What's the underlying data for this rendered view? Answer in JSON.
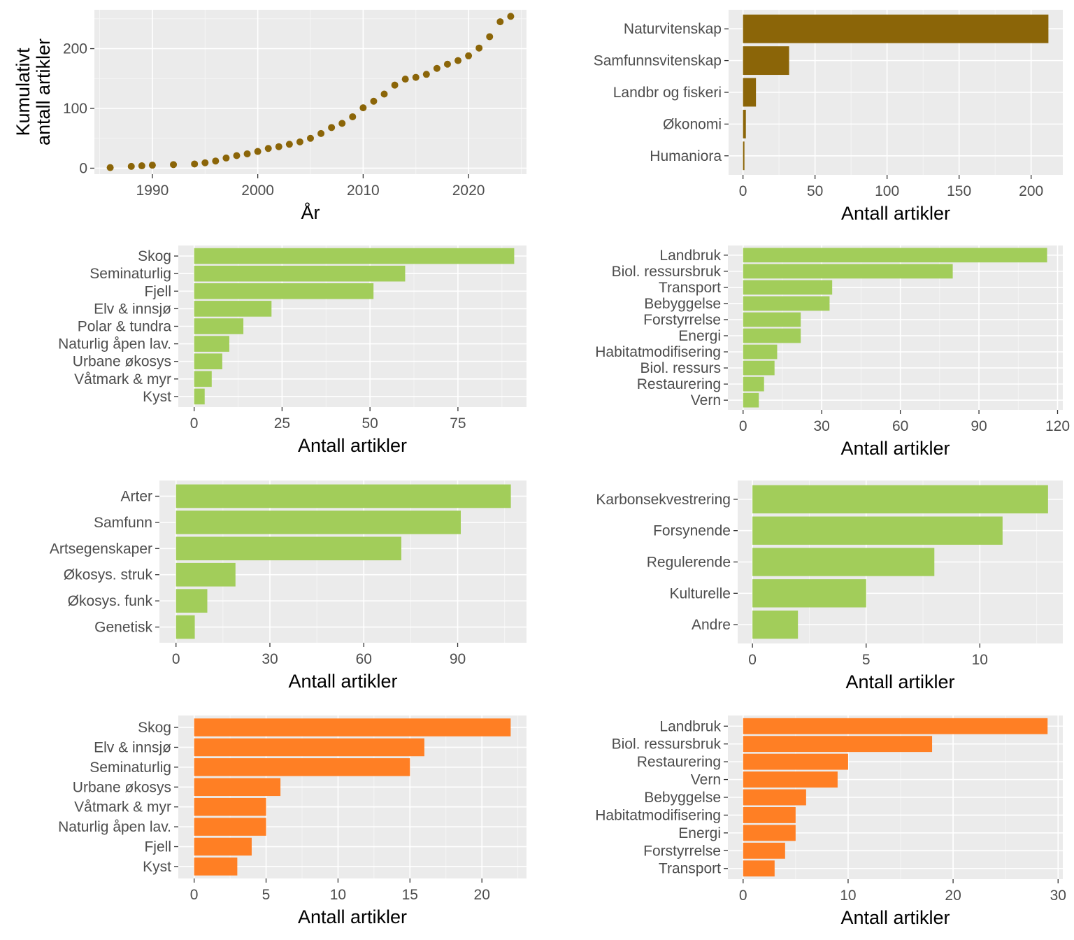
{
  "chart_data": [
    {
      "id": "cumulative",
      "type": "scatter",
      "color": "#8B6508",
      "xlabel": "År",
      "ylabel_lines": [
        "Kumulativt",
        "antall artikler"
      ],
      "xlim": [
        1984.5,
        2025.5
      ],
      "ylim": [
        -10,
        265
      ],
      "xticks": [
        1990,
        2000,
        2010,
        2020
      ],
      "yticks": [
        0,
        100,
        200
      ],
      "points": [
        {
          "x": 1986,
          "y": 1
        },
        {
          "x": 1988,
          "y": 3
        },
        {
          "x": 1989,
          "y": 4
        },
        {
          "x": 1990,
          "y": 5
        },
        {
          "x": 1992,
          "y": 6
        },
        {
          "x": 1994,
          "y": 7
        },
        {
          "x": 1995,
          "y": 9
        },
        {
          "x": 1996,
          "y": 12
        },
        {
          "x": 1997,
          "y": 17
        },
        {
          "x": 1998,
          "y": 21
        },
        {
          "x": 1999,
          "y": 24
        },
        {
          "x": 2000,
          "y": 28
        },
        {
          "x": 2001,
          "y": 33
        },
        {
          "x": 2002,
          "y": 36
        },
        {
          "x": 2003,
          "y": 40
        },
        {
          "x": 2004,
          "y": 44
        },
        {
          "x": 2005,
          "y": 50
        },
        {
          "x": 2006,
          "y": 58
        },
        {
          "x": 2007,
          "y": 68
        },
        {
          "x": 2008,
          "y": 75
        },
        {
          "x": 2009,
          "y": 86
        },
        {
          "x": 2010,
          "y": 101
        },
        {
          "x": 2011,
          "y": 112
        },
        {
          "x": 2012,
          "y": 124
        },
        {
          "x": 2013,
          "y": 139
        },
        {
          "x": 2014,
          "y": 149
        },
        {
          "x": 2015,
          "y": 152
        },
        {
          "x": 2016,
          "y": 157
        },
        {
          "x": 2017,
          "y": 167
        },
        {
          "x": 2018,
          "y": 174
        },
        {
          "x": 2019,
          "y": 180
        },
        {
          "x": 2020,
          "y": 188
        },
        {
          "x": 2021,
          "y": 201
        },
        {
          "x": 2022,
          "y": 220
        },
        {
          "x": 2023,
          "y": 245
        },
        {
          "x": 2024,
          "y": 254
        }
      ]
    },
    {
      "id": "fields",
      "type": "bar",
      "orientation": "horizontal",
      "color": "#8B6508",
      "xlabel": "Antall artikler",
      "xlim": [
        -10,
        222
      ],
      "xticks": [
        0,
        50,
        100,
        150,
        200
      ],
      "categories": [
        "Naturvitenskap",
        "Samfunnsvitenskap",
        "Landbr og fiskeri",
        "Økonomi",
        "Humaniora"
      ],
      "values": [
        212,
        32,
        9,
        2,
        1
      ]
    },
    {
      "id": "ecosystems_green",
      "type": "bar",
      "orientation": "horizontal",
      "color": "#A2CD5A",
      "xlabel": "Antall artikler",
      "xlim": [
        -4.5,
        94.5
      ],
      "xticks": [
        0,
        25,
        50,
        75
      ],
      "categories": [
        "Skog",
        "Seminaturlig",
        "Fjell",
        "Elv & innsjø",
        "Polar & tundra",
        "Naturlig åpen lav.",
        "Urbane økosys",
        "Våtmark & myr",
        "Kyst"
      ],
      "values": [
        91,
        60,
        51,
        22,
        14,
        10,
        8,
        5,
        3
      ]
    },
    {
      "id": "drivers_green",
      "type": "bar",
      "orientation": "horizontal",
      "color": "#A2CD5A",
      "xlabel": "Antall artikler",
      "xlim": [
        -5.8,
        122
      ],
      "xticks": [
        0,
        30,
        60,
        90,
        120
      ],
      "categories": [
        "Landbruk",
        "Biol. ressursbruk",
        "Transport",
        "Bebyggelse",
        "Forstyrrelse",
        "Energi",
        "Habitatmodifisering",
        "Biol. ressurs",
        "Restaurering",
        "Vern"
      ],
      "values": [
        116,
        80,
        34,
        33,
        22,
        22,
        13,
        12,
        8,
        6
      ]
    },
    {
      "id": "biodiversity_green",
      "type": "bar",
      "orientation": "horizontal",
      "color": "#A2CD5A",
      "xlabel": "Antall artikler",
      "xlim": [
        -5.3,
        112
      ],
      "xticks": [
        0,
        30,
        60,
        90
      ],
      "categories": [
        "Arter",
        "Samfunn",
        "Artsegenskaper",
        "Økosys. struk",
        "Økosys. funk",
        "Genetisk"
      ],
      "values": [
        107,
        91,
        72,
        19,
        10,
        6
      ]
    },
    {
      "id": "services_green",
      "type": "bar",
      "orientation": "horizontal",
      "color": "#A2CD5A",
      "xlabel": "Antall artikler",
      "xlim": [
        -0.65,
        13.65
      ],
      "xticks": [
        0,
        5,
        10
      ],
      "categories": [
        "Karbonsekvestrering",
        "Forsynende",
        "Regulerende",
        "Kulturelle",
        "Andre"
      ],
      "values": [
        13,
        11,
        8,
        5,
        2
      ]
    },
    {
      "id": "ecosystems_orange",
      "type": "bar",
      "orientation": "horizontal",
      "color": "#FF7F24",
      "xlabel": "Antall artikler",
      "xlim": [
        -1.1,
        23.1
      ],
      "xticks": [
        0,
        5,
        10,
        15,
        20
      ],
      "categories": [
        "Skog",
        "Elv & innsjø",
        "Seminaturlig",
        "Urbane økosys",
        "Våtmark & myr",
        "Naturlig åpen lav.",
        "Fjell",
        "Kyst"
      ],
      "values": [
        22,
        16,
        15,
        6,
        5,
        5,
        4,
        3
      ]
    },
    {
      "id": "drivers_orange",
      "type": "bar",
      "orientation": "horizontal",
      "color": "#FF7F24",
      "xlabel": "Antall artikler",
      "xlim": [
        -1.45,
        30.45
      ],
      "xticks": [
        0,
        10,
        20,
        30
      ],
      "categories": [
        "Landbruk",
        "Biol. ressursbruk",
        "Restaurering",
        "Vern",
        "Bebyggelse",
        "Habitatmodifisering",
        "Energi",
        "Forstyrrelse",
        "Transport"
      ],
      "values": [
        29,
        18,
        10,
        9,
        6,
        5,
        5,
        4,
        3
      ]
    }
  ]
}
